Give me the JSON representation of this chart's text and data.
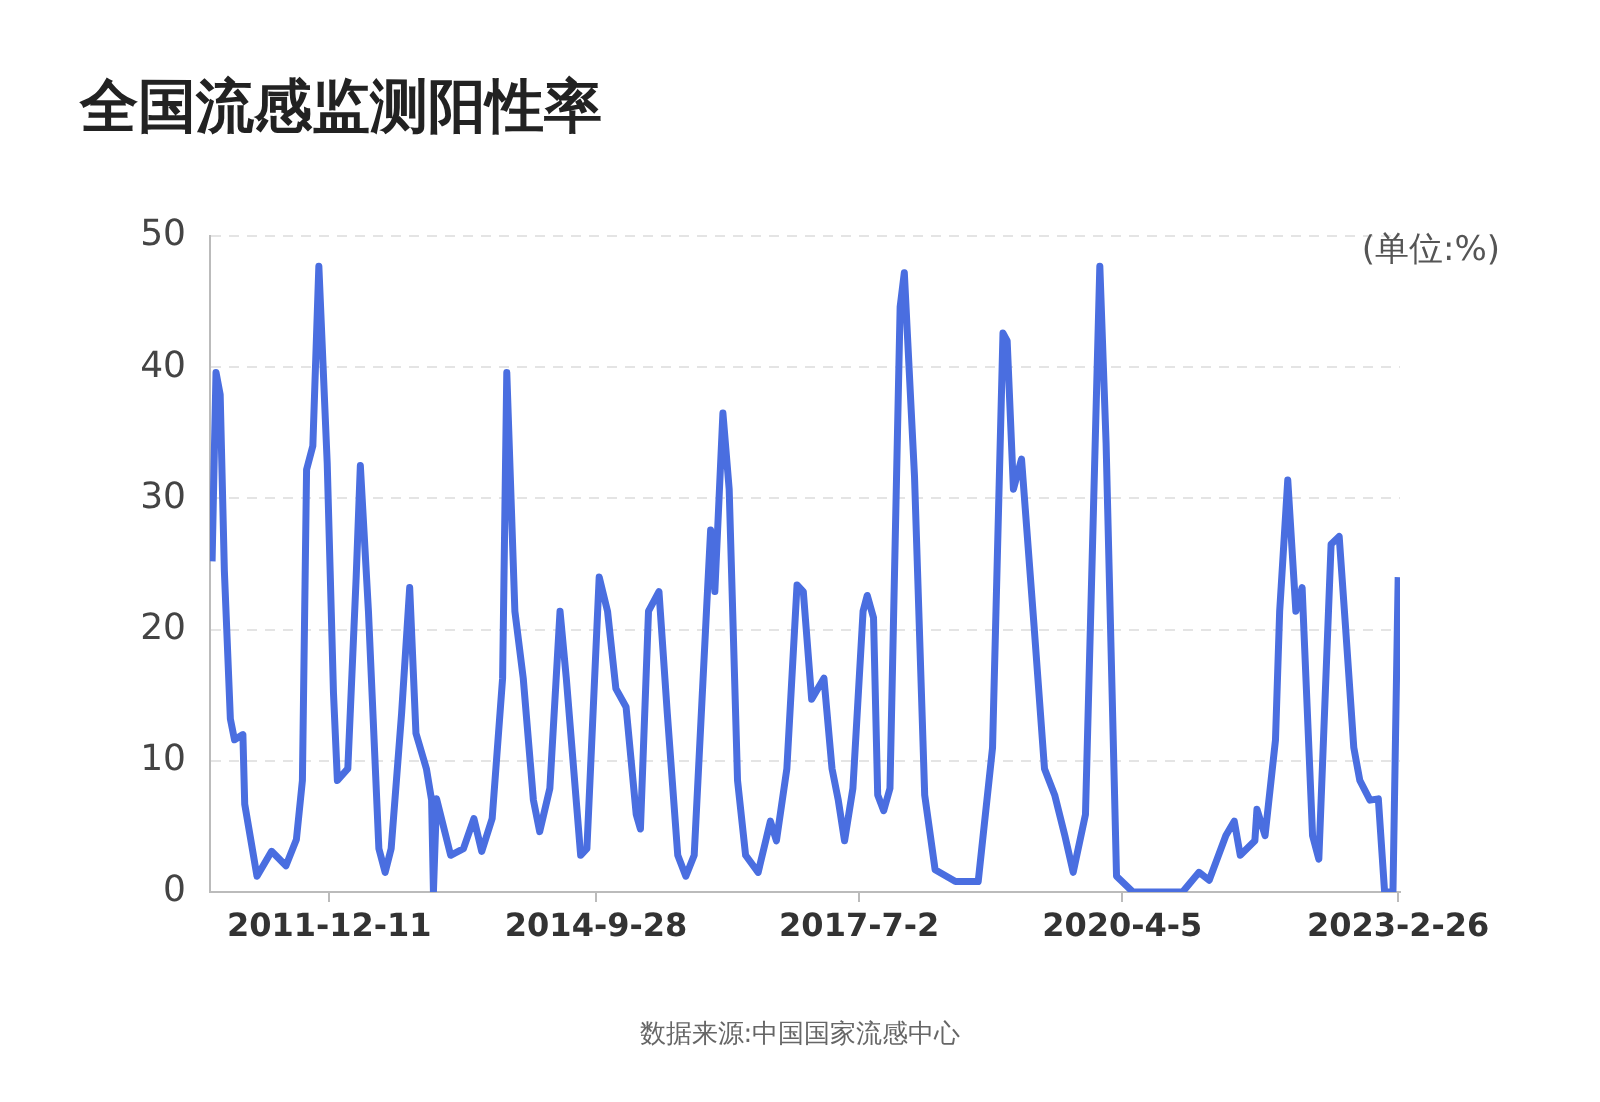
{
  "chart_data": {
    "type": "line",
    "title": "全国流感监测阳性率",
    "annotations": [
      "(单位:%)",
      "数据来源:中国国家流感中心"
    ],
    "x": [
      "2010-09-18",
      "2010-10-03",
      "2010-10-19",
      "2010-11-04",
      "2010-11-27",
      "2010-12-13",
      "2011-01-14",
      "2011-01-21",
      "2011-03-09",
      "2011-05-04",
      "2011-06-28",
      "2011-08-07",
      "2011-08-30",
      "2011-09-15",
      "2011-10-09",
      "2011-11-01",
      "2011-12-03",
      "2011-12-27",
      "2012-01-11",
      "2012-02-20",
      "2012-03-23",
      "2012-04-08",
      "2012-05-09",
      "2012-06-18",
      "2012-07-12",
      "2012-08-04",
      "2012-09-13",
      "2012-10-14",
      "2012-11-07",
      "2012-12-17",
      "2013-01-06",
      "2013-01-13",
      "2013-01-25",
      "2013-03-20",
      "2013-05-08",
      "2013-06-17",
      "2013-07-17",
      "2013-08-26",
      "2013-10-05",
      "2013-10-21",
      "2013-11-21",
      "2013-12-23",
      "2014-01-31",
      "2014-02-24",
      "2014-04-04",
      "2014-05-13",
      "2014-06-06",
      "2014-07-31",
      "2014-08-24",
      "2014-10-10",
      "2014-11-11",
      "2014-12-13",
      "2015-01-21",
      "2015-03-01",
      "2015-03-17",
      "2015-04-17",
      "2015-05-27",
      "2015-06-28",
      "2015-08-07",
      "2015-09-07",
      "2015-10-09",
      "2015-11-25",
      "2015-12-11",
      "2015-12-27",
      "2016-01-27",
      "2016-02-20",
      "2016-03-23",
      "2016-04-23",
      "2016-06-10",
      "2016-07-27",
      "2016-08-19",
      "2016-09-28",
      "2016-11-06",
      "2016-11-30",
      "2017-01-01",
      "2017-02-17",
      "2017-03-20",
      "2017-04-13",
      "2017-05-07",
      "2017-06-08",
      "2017-07-17",
      "2017-08-02",
      "2017-08-26",
      "2017-09-11",
      "2017-10-04",
      "2017-10-28",
      "2017-12-06",
      "2017-12-22",
      "2018-01-30",
      "2018-03-10",
      "2018-04-19",
      "2018-07-06",
      "2018-10-01",
      "2018-11-25",
      "2019-01-04",
      "2019-01-20",
      "2019-02-13",
      "2019-03-16",
      "2019-05-03",
      "2019-06-12",
      "2019-07-21",
      "2019-08-29",
      "2019-09-30",
      "2019-11-16",
      "2020-01-10",
      "2020-02-03",
      "2020-03-14",
      "2020-05-16",
      "2020-11-22",
      "2021-01-24",
      "2021-03-04",
      "2021-05-07",
      "2021-06-08",
      "2021-07-01",
      "2021-08-26",
      "2021-09-03",
      "2021-10-04",
      "2021-11-13",
      "2021-11-29",
      "2021-12-30",
      "2022-01-30",
      "2022-02-23",
      "2022-04-04",
      "2022-04-28",
      "2022-06-14",
      "2022-07-15",
      "2022-08-08",
      "2022-09-09",
      "2022-10-02",
      "2022-11-10",
      "2022-12-12",
      "2023-01-05",
      "2023-02-06",
      "2023-02-26"
    ],
    "series": [
      {
        "color": "#4a6ee0",
        "values": [
          25.2,
          39.6,
          37.9,
          24.5,
          13.2,
          11.6,
          12,
          6.7,
          1.2,
          3.1,
          2,
          4,
          8.5,
          32.2,
          34,
          47.7,
          32.7,
          15.2,
          8.5,
          9.4,
          24,
          32.5,
          21.4,
          3.3,
          1.5,
          3.3,
          13.6,
          23.2,
          12.1,
          9.4,
          7,
          0,
          7.1,
          2.8,
          3.3,
          5.6,
          3.1,
          5.6,
          16.3,
          39.6,
          21.4,
          16.3,
          7,
          4.6,
          7.9,
          21.4,
          16.3,
          2.8,
          3.3,
          24,
          21.4,
          15.5,
          14.1,
          5.9,
          4.8,
          21.4,
          22.9,
          13.6,
          2.8,
          1.2,
          2.8,
          21.4,
          27.6,
          22.9,
          36.5,
          30.7,
          8.5,
          2.8,
          1.5,
          5.4,
          3.9,
          9.4,
          23.4,
          22.9,
          14.7,
          16.3,
          9.4,
          7,
          3.9,
          7.9,
          21.4,
          22.6,
          20.9,
          7.4,
          6.2,
          7.9,
          44.6,
          47.2,
          31.7,
          7.4,
          1.7,
          0.8,
          0.8,
          11,
          42.6,
          42,
          30.7,
          33,
          20.3,
          9.4,
          7.4,
          4.3,
          1.5,
          5.9,
          47.7,
          34.2,
          1.2,
          0,
          0,
          1.5,
          0.9,
          4.3,
          5.4,
          2.8,
          3.9,
          6.3,
          4.3,
          11.6,
          21.4,
          31.4,
          21.4,
          23.2,
          4.3,
          2.5,
          26.5,
          27.1,
          20.3,
          11,
          8.5,
          7,
          7.1,
          0,
          0,
          24
        ]
      }
    ],
    "xlim": [
      "2010-09-10",
      "2023-03-05"
    ],
    "xticks": [
      {
        "value": "2011-12-11",
        "label": "2011-12-11"
      },
      {
        "value": "2014-09-28",
        "label": "2014-9-28"
      },
      {
        "value": "2017-07-02",
        "label": "2017-7-2"
      },
      {
        "value": "2020-04-05",
        "label": "2020-4-5"
      },
      {
        "value": "2023-02-26",
        "label": "2023-2-26"
      }
    ],
    "ylim": [
      0,
      50
    ],
    "yticks": [
      0,
      10,
      20,
      30,
      40,
      50
    ],
    "grid": "y",
    "marker": "none",
    "line_style": "solid"
  }
}
